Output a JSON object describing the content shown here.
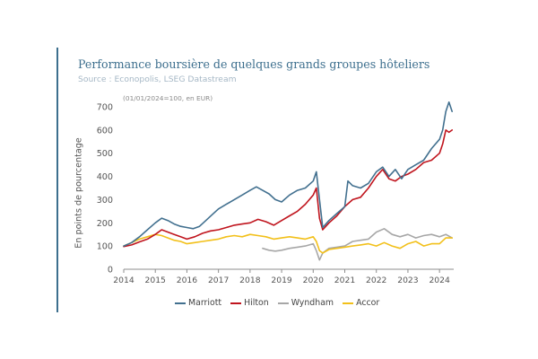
{
  "header": {
    "title": "Performance boursière de quelques grands groupes hôteliers",
    "source": "Source : Econopolis, LSEG Datastream"
  },
  "colors": {
    "accent": "#3d6f8e",
    "Marriott": "#42708f",
    "Hilton": "#c0151e",
    "Wyndham": "#a7a7a7",
    "Accor": "#f2c01a"
  },
  "chart_data": {
    "type": "line",
    "title": "Performance boursière de quelques grands groupes hôteliers",
    "subtitle": "Source : Econopolis, LSEG Datastream",
    "note": "(01/01/2024=100, en EUR)",
    "ylabel": "En points de pourcentage",
    "xlabel": "",
    "xlim": [
      2014,
      2024.45
    ],
    "ylim": [
      0,
      700
    ],
    "yticks": [
      "0",
      "100",
      "200",
      "300",
      "400",
      "500",
      "600",
      "700"
    ],
    "xticks": [
      "2014",
      "2015",
      "2016",
      "2017",
      "2018",
      "2019",
      "2020",
      "2021",
      "2022",
      "2023",
      "2024"
    ],
    "grid": false,
    "legend": "bottom",
    "series": [
      {
        "name": "Marriott",
        "x": [
          2014,
          2014.25,
          2014.5,
          2014.75,
          2015,
          2015.2,
          2015.4,
          2015.6,
          2015.8,
          2016,
          2016.2,
          2016.4,
          2016.6,
          2016.8,
          2017,
          2017.25,
          2017.5,
          2017.75,
          2018,
          2018.2,
          2018.4,
          2018.6,
          2018.8,
          2019,
          2019.25,
          2019.5,
          2019.75,
          2020,
          2020.1,
          2020.2,
          2020.3,
          2020.5,
          2020.75,
          2021,
          2021.1,
          2021.25,
          2021.5,
          2021.75,
          2022,
          2022.2,
          2022.4,
          2022.6,
          2022.8,
          2023,
          2023.25,
          2023.5,
          2023.75,
          2024,
          2024.1,
          2024.2,
          2024.3,
          2024.4
        ],
        "y": [
          100,
          115,
          140,
          170,
          200,
          220,
          210,
          195,
          185,
          180,
          175,
          185,
          210,
          235,
          260,
          280,
          300,
          320,
          340,
          355,
          340,
          325,
          300,
          290,
          320,
          340,
          350,
          380,
          420,
          300,
          180,
          210,
          240,
          270,
          380,
          360,
          350,
          370,
          420,
          440,
          400,
          430,
          390,
          430,
          450,
          470,
          520,
          560,
          600,
          680,
          720,
          680
        ]
      },
      {
        "name": "Hilton",
        "x": [
          2014,
          2014.25,
          2014.5,
          2014.75,
          2015,
          2015.2,
          2015.4,
          2015.6,
          2015.8,
          2016,
          2016.25,
          2016.5,
          2016.75,
          2017,
          2017.25,
          2017.5,
          2017.75,
          2018,
          2018.25,
          2018.5,
          2018.75,
          2019,
          2019.25,
          2019.5,
          2019.75,
          2020,
          2020.1,
          2020.2,
          2020.3,
          2020.5,
          2020.75,
          2021,
          2021.25,
          2021.5,
          2021.75,
          2022,
          2022.2,
          2022.4,
          2022.6,
          2022.8,
          2023,
          2023.25,
          2023.5,
          2023.75,
          2024,
          2024.1,
          2024.2,
          2024.3,
          2024.4
        ],
        "y": [
          98,
          105,
          118,
          130,
          150,
          170,
          160,
          150,
          140,
          130,
          140,
          155,
          165,
          170,
          180,
          190,
          195,
          200,
          215,
          205,
          190,
          210,
          230,
          250,
          280,
          320,
          350,
          220,
          170,
          200,
          230,
          270,
          300,
          310,
          350,
          400,
          430,
          390,
          380,
          400,
          410,
          430,
          460,
          470,
          500,
          540,
          600,
          590,
          600
        ]
      },
      {
        "name": "Wyndham",
        "x": [
          2018.4,
          2018.6,
          2018.8,
          2019,
          2019.25,
          2019.5,
          2019.75,
          2020,
          2020.1,
          2020.2,
          2020.3,
          2020.5,
          2020.75,
          2021,
          2021.25,
          2021.5,
          2021.75,
          2022,
          2022.25,
          2022.5,
          2022.75,
          2023,
          2023.25,
          2023.5,
          2023.75,
          2024,
          2024.2,
          2024.4
        ],
        "y": [
          90,
          82,
          78,
          82,
          90,
          95,
          100,
          110,
          80,
          40,
          70,
          90,
          95,
          100,
          120,
          125,
          130,
          160,
          175,
          150,
          140,
          150,
          135,
          145,
          150,
          140,
          150,
          135
        ]
      },
      {
        "name": "Accor",
        "x": [
          2014,
          2014.25,
          2014.5,
          2014.75,
          2015,
          2015.2,
          2015.4,
          2015.6,
          2015.8,
          2016,
          2016.25,
          2016.5,
          2016.75,
          2017,
          2017.25,
          2017.5,
          2017.75,
          2018,
          2018.25,
          2018.5,
          2018.75,
          2019,
          2019.25,
          2019.5,
          2019.75,
          2020,
          2020.1,
          2020.2,
          2020.3,
          2020.5,
          2020.75,
          2021,
          2021.25,
          2021.5,
          2021.75,
          2022,
          2022.25,
          2022.5,
          2022.75,
          2023,
          2023.25,
          2023.5,
          2023.75,
          2024,
          2024.2,
          2024.4
        ],
        "y": [
          100,
          115,
          130,
          140,
          150,
          145,
          135,
          125,
          120,
          110,
          115,
          120,
          125,
          130,
          140,
          145,
          140,
          150,
          145,
          140,
          130,
          135,
          140,
          135,
          130,
          140,
          120,
          80,
          70,
          85,
          90,
          95,
          100,
          105,
          110,
          100,
          115,
          100,
          90,
          110,
          120,
          100,
          110,
          110,
          135,
          135
        ]
      }
    ]
  }
}
